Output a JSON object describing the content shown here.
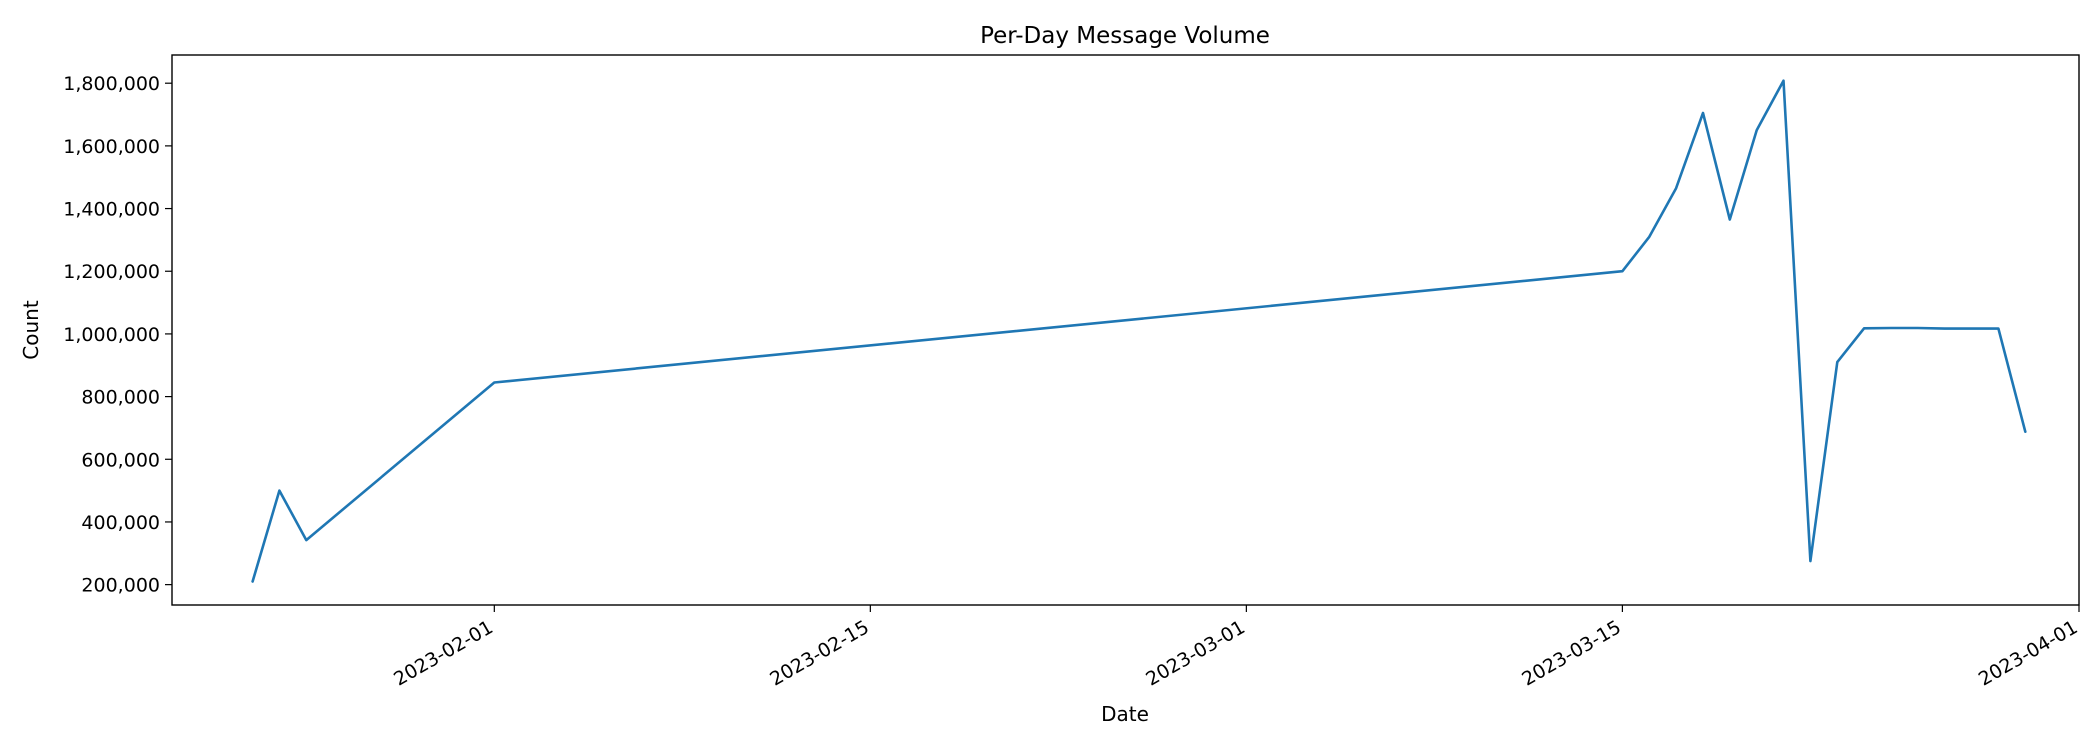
{
  "chart_data": {
    "type": "line",
    "title": "Per-Day Message Volume",
    "xlabel": "Date",
    "ylabel": "Count",
    "grid": false,
    "legend": "none",
    "x_is_date": true,
    "xlim": [
      "2023-01-20",
      "2023-04-01"
    ],
    "ylim": [
      135000,
      1890000
    ],
    "x_ticks": [
      "2023-02-01",
      "2023-02-15",
      "2023-03-01",
      "2023-03-15",
      "2023-04-01"
    ],
    "y_ticks": [
      200000,
      400000,
      600000,
      800000,
      1000000,
      1200000,
      1400000,
      1600000,
      1800000
    ],
    "y_tick_labels": [
      "200,000",
      "400,000",
      "600,000",
      "800,000",
      "1,000,000",
      "1,200,000",
      "1,400,000",
      "1,600,000",
      "1,800,000"
    ],
    "series": [
      {
        "color": "#1f77b4",
        "x": [
          "2023-01-23",
          "2023-01-24",
          "2023-01-25",
          "2023-02-01",
          "2023-03-15",
          "2023-03-16",
          "2023-03-17",
          "2023-03-18",
          "2023-03-19",
          "2023-03-20",
          "2023-03-21",
          "2023-03-22",
          "2023-03-23",
          "2023-03-24",
          "2023-03-25",
          "2023-03-26",
          "2023-03-27",
          "2023-03-28",
          "2023-03-29",
          "2023-03-30"
        ],
        "y": [
          210000,
          500000,
          342000,
          845000,
          1200000,
          1310000,
          1465000,
          1705000,
          1365000,
          1650000,
          1808000,
          275000,
          910000,
          1018000,
          1019000,
          1019000,
          1017000,
          1017000,
          1017000,
          688000
        ]
      }
    ]
  }
}
